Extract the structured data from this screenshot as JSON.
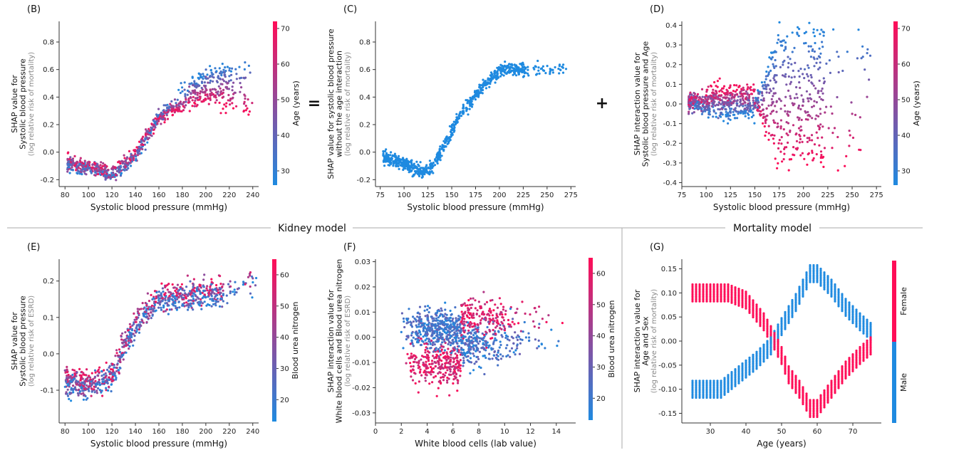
{
  "sections": {
    "kidney": "Kidney model",
    "mortality": "Mortality model"
  },
  "operators": {
    "equals": "=",
    "plus": "+"
  },
  "colors": {
    "blue": "#1f8ae0",
    "red": "#ff0d57",
    "axis": "#333333",
    "divider": "#aaaaaa"
  },
  "chart_data": [
    {
      "id": "B",
      "type": "scatter",
      "panel_label": "(B)",
      "xlabel": "Systolic blood pressure (mmHg)",
      "ylabel_lines": [
        "SHAP value for",
        "Systolic blood pressure"
      ],
      "ylabel_sub": "(log relative risk of mortality)",
      "xlim": [
        75,
        245
      ],
      "ylim": [
        -0.25,
        0.95
      ],
      "xticks": [
        80,
        100,
        120,
        140,
        160,
        180,
        200,
        220,
        240
      ],
      "yticks": [
        -0.2,
        0.0,
        0.2,
        0.4,
        0.6,
        0.8
      ],
      "colorbar": {
        "label": "Age (years)",
        "range": [
          26,
          72
        ],
        "ticks": [
          30,
          40,
          50,
          60,
          70
        ]
      },
      "trend": [
        [
          82,
          -0.08
        ],
        [
          95,
          -0.1
        ],
        [
          110,
          -0.13
        ],
        [
          120,
          -0.16
        ],
        [
          130,
          -0.1
        ],
        [
          140,
          -0.02
        ],
        [
          150,
          0.12
        ],
        [
          160,
          0.25
        ],
        [
          170,
          0.32
        ],
        [
          180,
          0.38
        ],
        [
          190,
          0.44
        ],
        [
          200,
          0.47
        ],
        [
          210,
          0.48
        ],
        [
          220,
          0.47
        ],
        [
          235,
          0.46
        ]
      ],
      "color_effect": {
        "start": 150,
        "spread": 0.0045
      }
    },
    {
      "id": "C",
      "type": "scatter",
      "panel_label": "(C)",
      "xlabel": "Systolic blood pressure (mmHg)",
      "ylabel_lines": [
        "SHAP value for systolic blood pressure",
        "without the age interaction"
      ],
      "ylabel_sub": "(log relative risk of mortality)",
      "xlim": [
        70,
        280
      ],
      "ylim": [
        -0.25,
        0.95
      ],
      "xticks": [
        75,
        100,
        125,
        150,
        175,
        200,
        225,
        250,
        275
      ],
      "yticks": [
        -0.2,
        0.0,
        0.2,
        0.4,
        0.6,
        0.8
      ],
      "trend": [
        [
          78,
          -0.04
        ],
        [
          95,
          -0.07
        ],
        [
          110,
          -0.12
        ],
        [
          120,
          -0.15
        ],
        [
          130,
          -0.1
        ],
        [
          140,
          0.02
        ],
        [
          150,
          0.15
        ],
        [
          160,
          0.28
        ],
        [
          175,
          0.42
        ],
        [
          190,
          0.53
        ],
        [
          200,
          0.58
        ],
        [
          210,
          0.61
        ],
        [
          225,
          0.6
        ],
        [
          250,
          0.6
        ],
        [
          270,
          0.6
        ]
      ]
    },
    {
      "id": "D",
      "type": "scatter",
      "panel_label": "(D)",
      "xlabel": "Systolic blood pressure (mmHg)",
      "ylabel_lines": [
        "SHAP interaction value for",
        "Systolic blood pressure and Age"
      ],
      "ylabel_sub": "(log relative risk of mortality)",
      "xlim": [
        75,
        280
      ],
      "ylim": [
        -0.42,
        0.42
      ],
      "xticks": [
        75,
        100,
        125,
        150,
        175,
        200,
        225,
        250,
        275
      ],
      "yticks": [
        -0.4,
        -0.3,
        -0.2,
        -0.1,
        0.0,
        0.1,
        0.2,
        0.3,
        0.4
      ],
      "colorbar": {
        "label": "Age (years)",
        "range": [
          26,
          72
        ],
        "ticks": [
          30,
          40,
          50,
          60,
          70
        ]
      }
    },
    {
      "id": "E",
      "type": "scatter",
      "panel_label": "(E)",
      "xlabel": "Systolic blood pressure (mmHg)",
      "ylabel_lines": [
        "SHAP value for",
        "Systolic blood pressure"
      ],
      "ylabel_sub": "(log relative risk of ESRD)",
      "xlim": [
        75,
        245
      ],
      "ylim": [
        -0.19,
        0.26
      ],
      "xticks": [
        80,
        100,
        120,
        140,
        160,
        180,
        200,
        220,
        240
      ],
      "yticks": [
        -0.1,
        0.0,
        0.1,
        0.2
      ],
      "colorbar": {
        "label": "Blood urea nitrogen",
        "range": [
          13,
          65
        ],
        "ticks": [
          20,
          30,
          40,
          50,
          60
        ]
      },
      "trend": [
        [
          80,
          -0.075
        ],
        [
          95,
          -0.085
        ],
        [
          110,
          -0.08
        ],
        [
          120,
          -0.06
        ],
        [
          125,
          -0.03
        ],
        [
          130,
          0.02
        ],
        [
          140,
          0.08
        ],
        [
          150,
          0.12
        ],
        [
          160,
          0.15
        ],
        [
          170,
          0.155
        ],
        [
          190,
          0.16
        ],
        [
          210,
          0.165
        ],
        [
          240,
          0.2
        ]
      ]
    },
    {
      "id": "F",
      "type": "scatter",
      "panel_label": "(F)",
      "xlabel": "White blood cells (lab value)",
      "ylabel_lines": [
        "SHAP interaction value for",
        "White blood cells and Blood urea nitrogen"
      ],
      "ylabel_sub": "(log relative risk of ESRD)",
      "xlim": [
        0,
        15.5
      ],
      "ylim": [
        -0.034,
        0.031
      ],
      "xticks": [
        0,
        2,
        4,
        6,
        8,
        10,
        12,
        14
      ],
      "yticks": [
        -0.03,
        -0.02,
        -0.01,
        0.0,
        0.01,
        0.02,
        0.03
      ],
      "colorbar": {
        "label": "Blood urea nitrogen",
        "range": [
          13,
          65
        ],
        "ticks": [
          20,
          30,
          40,
          50,
          60
        ]
      }
    },
    {
      "id": "G",
      "type": "scatter",
      "panel_label": "(G)",
      "xlabel": "Age (years)",
      "ylabel_lines": [
        "SHAP interaction value for",
        "Age and Sex"
      ],
      "ylabel_sub": "(log relative risk of mortality)",
      "xlim": [
        22,
        78
      ],
      "ylim": [
        -0.17,
        0.17
      ],
      "xticks": [
        30,
        40,
        50,
        60,
        70
      ],
      "yticks": [
        -0.15,
        -0.1,
        -0.05,
        0.0,
        0.05,
        0.1,
        0.15
      ],
      "colorbar": {
        "labels": [
          "Female",
          "Male"
        ]
      },
      "female_curve": [
        [
          25,
          0.1
        ],
        [
          35,
          0.1
        ],
        [
          40,
          0.085
        ],
        [
          45,
          0.04
        ],
        [
          48,
          0.0
        ],
        [
          50,
          -0.03
        ],
        [
          52,
          -0.07
        ],
        [
          55,
          -0.1
        ],
        [
          58,
          -0.14
        ],
        [
          60,
          -0.14
        ],
        [
          64,
          -0.1
        ],
        [
          68,
          -0.06
        ],
        [
          72,
          -0.03
        ],
        [
          75,
          -0.01
        ]
      ],
      "male_curve": [
        [
          25,
          -0.1
        ],
        [
          33,
          -0.1
        ],
        [
          38,
          -0.07
        ],
        [
          43,
          -0.04
        ],
        [
          47,
          -0.01
        ],
        [
          50,
          0.03
        ],
        [
          54,
          0.08
        ],
        [
          58,
          0.14
        ],
        [
          60,
          0.14
        ],
        [
          64,
          0.11
        ],
        [
          68,
          0.07
        ],
        [
          72,
          0.04
        ],
        [
          75,
          0.02
        ]
      ]
    }
  ]
}
